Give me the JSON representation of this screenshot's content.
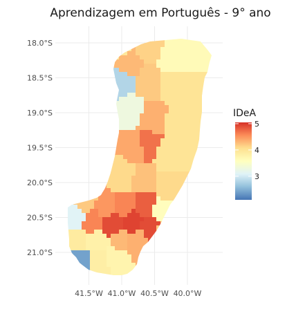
{
  "title": "Aprendizagem em Português - 9° ano",
  "legend": {
    "title": "IDeA",
    "ticks": [
      "3",
      "4",
      "5"
    ],
    "tick_values": [
      3,
      4,
      5
    ],
    "range": [
      2.1,
      5.05
    ],
    "colors": [
      "#4575b4",
      "#91bfdb",
      "#e0f3f8",
      "#ffffbf",
      "#fee090",
      "#fc8d59",
      "#d73027"
    ]
  },
  "chart_data": {
    "type": "choropleth",
    "title": "Aprendizagem em Português - 9° ano",
    "fill_variable": "IDeA",
    "x_tick_labels": [
      "41.5°W",
      "41.0°W",
      "40.5°W",
      "40.0°W"
    ],
    "y_tick_labels": [
      "18.0°S",
      "18.5°S",
      "19.0°S",
      "19.5°S",
      "20.0°S",
      "20.5°S",
      "21.0°S"
    ],
    "xlim": [
      -41.9,
      -39.6
    ],
    "ylim": [
      -21.4,
      -17.8
    ],
    "grid": true,
    "legend_position": "right",
    "value_range": [
      2.1,
      5.05
    ],
    "regions_approx": [
      {
        "lon": -41.05,
        "lat": -18.05,
        "value": 3.95
      },
      {
        "lon": -40.6,
        "lat": -18.05,
        "value": 4.15
      },
      {
        "lon": -40.2,
        "lat": -18.2,
        "value": 3.65
      },
      {
        "lon": -40.9,
        "lat": -18.3,
        "value": 4.3
      },
      {
        "lon": -41.0,
        "lat": -18.55,
        "value": 2.8
      },
      {
        "lon": -40.6,
        "lat": -18.6,
        "value": 4.2
      },
      {
        "lon": -40.2,
        "lat": -18.6,
        "value": 4.0
      },
      {
        "lon": -40.85,
        "lat": -18.95,
        "value": 3.3
      },
      {
        "lon": -40.55,
        "lat": -19.1,
        "value": 4.35
      },
      {
        "lon": -40.15,
        "lat": -19.2,
        "value": 4.0
      },
      {
        "lon": -40.8,
        "lat": -19.5,
        "value": 4.4
      },
      {
        "lon": -40.6,
        "lat": -19.45,
        "value": 4.7
      },
      {
        "lon": -40.3,
        "lat": -19.6,
        "value": 4.0
      },
      {
        "lon": -41.0,
        "lat": -19.9,
        "value": 4.1
      },
      {
        "lon": -40.65,
        "lat": -19.95,
        "value": 4.25
      },
      {
        "lon": -40.3,
        "lat": -20.05,
        "value": 4.1
      },
      {
        "lon": -41.55,
        "lat": -20.25,
        "value": 4.2
      },
      {
        "lon": -41.25,
        "lat": -20.35,
        "value": 4.5
      },
      {
        "lon": -40.95,
        "lat": -20.35,
        "value": 4.6
      },
      {
        "lon": -40.65,
        "lat": -20.35,
        "value": 4.8
      },
      {
        "lon": -40.4,
        "lat": -20.45,
        "value": 3.6
      },
      {
        "lon": -41.7,
        "lat": -20.5,
        "value": 3.1
      },
      {
        "lon": -41.45,
        "lat": -20.55,
        "value": 4.6
      },
      {
        "lon": -41.15,
        "lat": -20.6,
        "value": 4.9
      },
      {
        "lon": -40.85,
        "lat": -20.55,
        "value": 4.95
      },
      {
        "lon": -40.55,
        "lat": -20.65,
        "value": 4.9
      },
      {
        "lon": -40.35,
        "lat": -20.7,
        "value": 4.2
      },
      {
        "lon": -41.7,
        "lat": -20.85,
        "value": 3.9
      },
      {
        "lon": -41.35,
        "lat": -20.85,
        "value": 3.8
      },
      {
        "lon": -41.05,
        "lat": -20.85,
        "value": 4.3
      },
      {
        "lon": -40.75,
        "lat": -20.85,
        "value": 4.35
      },
      {
        "lon": -41.65,
        "lat": -21.1,
        "value": 2.4
      },
      {
        "lon": -41.35,
        "lat": -21.1,
        "value": 3.85
      },
      {
        "lon": -41.1,
        "lat": -21.05,
        "value": 3.75
      }
    ]
  }
}
